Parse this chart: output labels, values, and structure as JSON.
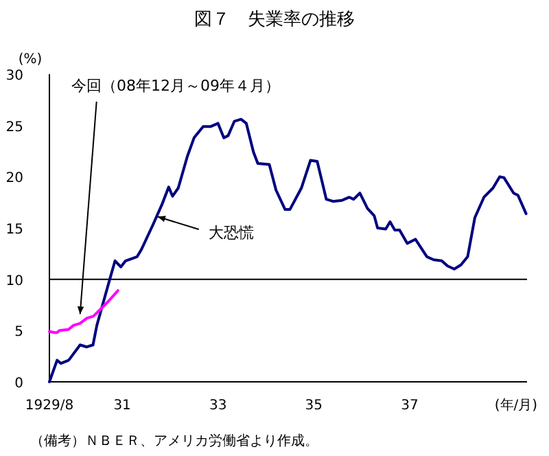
{
  "chart_data": {
    "type": "line",
    "title": "図７　失業率の推移",
    "ylabel": "(%)",
    "xlabel": "(年/月)",
    "xlim": [
      29.48,
      39.45
    ],
    "xticks": [
      {
        "value": 29.48,
        "label": "1929/8"
      },
      31,
      33,
      35,
      37
    ],
    "ylim": [
      0,
      30
    ],
    "yticks": [
      0,
      5,
      10,
      15,
      20,
      25,
      30
    ],
    "grid": false,
    "marker": "none",
    "line_style": "solid",
    "series": [
      {
        "color": "#000080",
        "x": [
          29.48,
          29.64,
          29.72,
          29.88,
          29.93,
          30.12,
          30.26,
          30.39,
          30.47,
          30.59,
          30.74,
          30.85,
          30.97,
          31.07,
          31.31,
          31.4,
          31.64,
          31.83,
          31.97,
          32.05,
          32.17,
          32.36,
          32.5,
          32.69,
          32.85,
          33,
          33.12,
          33.21,
          33.34,
          33.48,
          33.59,
          33.74,
          33.83,
          34.07,
          34.21,
          34.4,
          34.5,
          34.74,
          34.93,
          35.07,
          35.26,
          35.4,
          35.59,
          35.74,
          35.83,
          35.96,
          36.12,
          36.26,
          36.33,
          36.5,
          36.59,
          36.69,
          36.79,
          36.95,
          37.12,
          37.36,
          37.5,
          37.67,
          37.79,
          37.93,
          38.07,
          38.21,
          38.36,
          38.55,
          38.74,
          38.88,
          38.97,
          39.17,
          39.26,
          39.43
        ],
        "values": [
          0,
          2.1,
          1.8,
          2.1,
          2.4,
          3.6,
          3.4,
          3.6,
          5.5,
          7.5,
          10,
          11.8,
          11.2,
          11.8,
          12.2,
          12.9,
          15.3,
          17.3,
          19,
          18.1,
          18.9,
          22,
          23.8,
          24.9,
          24.9,
          25.2,
          23.8,
          24,
          25.4,
          25.6,
          25.2,
          22.4,
          21.3,
          21.2,
          18.7,
          16.8,
          16.8,
          18.9,
          21.6,
          21.5,
          17.8,
          17.6,
          17.7,
          18,
          17.8,
          18.4,
          16.9,
          16.2,
          15,
          14.9,
          15.6,
          14.8,
          14.8,
          13.5,
          13.9,
          12.2,
          11.9,
          11.8,
          11.3,
          11,
          11.4,
          12.2,
          16,
          18,
          18.9,
          20,
          19.9,
          18.4,
          18.2,
          16.4
        ]
      },
      {
        "color": "#ff00ff",
        "x": [
          29.48,
          29.59,
          29.64,
          29.69,
          29.88,
          29.98,
          30.12,
          30.26,
          30.4,
          30.55,
          30.74,
          30.91
        ],
        "values": [
          4.9,
          4.8,
          4.8,
          5,
          5.1,
          5.5,
          5.7,
          6.2,
          6.4,
          7.1,
          8,
          8.9
        ]
      }
    ],
    "ref_lines": [
      {
        "axis": "y",
        "value": 10,
        "color": "#000000"
      }
    ],
    "annotations": [
      {
        "text": "今回（08年12月～09年４月）",
        "x": 30.12,
        "y": 6.6
      },
      {
        "text": "大恐慌",
        "x": 31.74,
        "y": 16.1
      },
      "（備考）ＮＢＥＲ、アメリカ労働省より作成。"
    ]
  }
}
